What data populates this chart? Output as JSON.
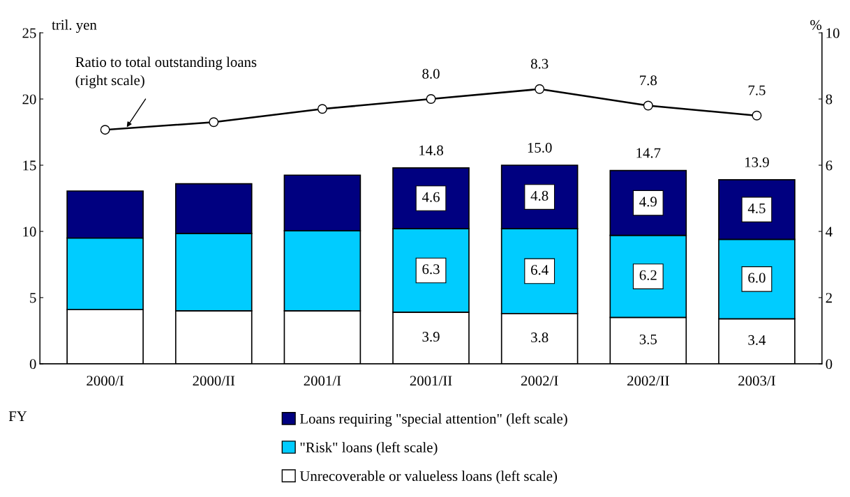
{
  "chart_data": {
    "type": "bar",
    "stacked": true,
    "xlabel": "FY",
    "ylabel": "tril. yen",
    "y2label": "%",
    "categories": [
      "2000/I",
      "2000/II",
      "2001/I",
      "2001/II",
      "2002/I",
      "2002/II",
      "2003/I"
    ],
    "series": [
      {
        "name": "Unrecoverable or valueless loans (left scale)",
        "color": "#ffffff",
        "values": [
          4.1,
          4.0,
          4.0,
          3.9,
          3.8,
          3.5,
          3.4
        ],
        "value_labels": [
          null,
          null,
          null,
          "3.9",
          "3.8",
          "3.5",
          "3.4"
        ]
      },
      {
        "name": "\"Risk\" loans (left scale)",
        "color": "#00ccff",
        "values": [
          5.4,
          5.85,
          6.05,
          6.3,
          6.4,
          6.2,
          6.0
        ],
        "value_labels": [
          null,
          null,
          null,
          "6.3",
          "6.4",
          "6.2",
          "6.0"
        ]
      },
      {
        "name": "Loans requiring \"special attention\" (left scale)",
        "color": "#000080",
        "values": [
          3.55,
          3.75,
          4.2,
          4.6,
          4.8,
          4.9,
          4.5
        ],
        "value_labels": [
          null,
          null,
          null,
          "4.6",
          "4.8",
          "4.9",
          "4.5"
        ]
      },
      {
        "type": "line",
        "axis": "y2",
        "color": "#000000",
        "marker": "circle",
        "values": [
          7.07,
          7.3,
          7.7,
          8.0,
          8.3,
          7.8,
          7.5
        ],
        "value_labels": [
          null,
          null,
          null,
          "8.0",
          "8.3",
          "7.8",
          "7.5"
        ]
      }
    ],
    "totals": [
      null,
      null,
      null,
      "14.8",
      "15.0",
      "14.7",
      "13.9"
    ],
    "ylim": [
      0,
      25
    ],
    "yticks": [
      0,
      5,
      10,
      15,
      20,
      25
    ],
    "y2lim": [
      0,
      10
    ],
    "y2ticks": [
      0,
      2,
      4,
      6,
      8,
      10
    ],
    "annotations": [
      "Ratio to total outstanding loans\n(right scale)"
    ],
    "grid": false,
    "legend": "bottom"
  }
}
